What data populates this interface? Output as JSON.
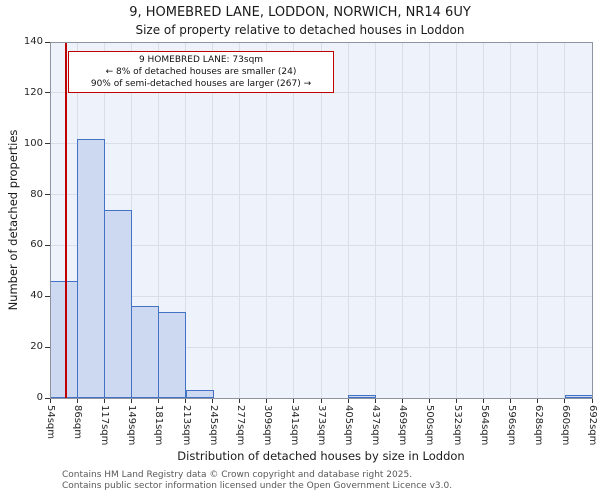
{
  "footer": {
    "line1": "Contains HM Land Registry data © Crown copyright and database right 2025.",
    "line2": "Contains public sector information licensed under the Open Government Licence v3.0."
  },
  "chart_data": {
    "type": "bar",
    "title": "9, HOMEBRED LANE, LODDON, NORWICH, NR14 6UY",
    "subtitle": "Size of property relative to detached houses in Loddon",
    "xlabel": "Distribution of detached houses by size in Loddon",
    "ylabel": "Number of detached properties",
    "bin_edge_labels": [
      "54sqm",
      "86sqm",
      "117sqm",
      "149sqm",
      "181sqm",
      "213sqm",
      "245sqm",
      "277sqm",
      "309sqm",
      "341sqm",
      "373sqm",
      "405sqm",
      "437sqm",
      "469sqm",
      "500sqm",
      "532sqm",
      "564sqm",
      "596sqm",
      "628sqm",
      "660sqm",
      "692sqm"
    ],
    "values": [
      46,
      102,
      74,
      36,
      34,
      3,
      0,
      0,
      0,
      0,
      0,
      1,
      0,
      0,
      0,
      0,
      0,
      0,
      0,
      1
    ],
    "ylim": [
      0,
      140
    ],
    "ytick_step": 20,
    "grid": true,
    "legend": "none",
    "bar_fill": "#cdd9f0",
    "bar_border": "#4472c4",
    "plot_background": "#eef2fb",
    "marker": {
      "value_sqm": 73,
      "axis_min_sqm": 54,
      "axis_max_sqm": 692,
      "color": "#c00000"
    },
    "annotation": {
      "line1": "9 HOMEBRED LANE: 73sqm",
      "line2": "← 8% of detached houses are smaller (24)",
      "line3": "90% of semi-detached houses are larger (267) →"
    }
  }
}
